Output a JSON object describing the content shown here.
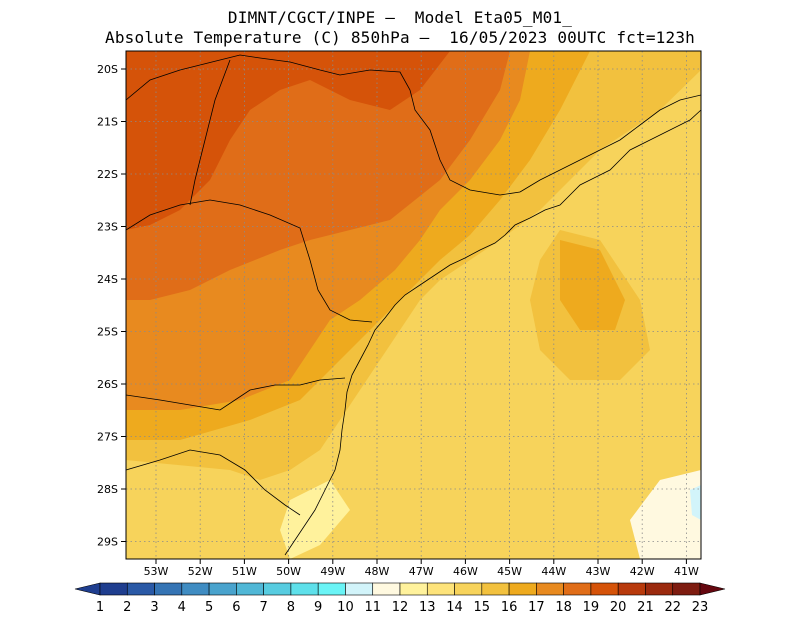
{
  "title": {
    "line1": "DIMNT/CGCT/INPE –  Model Eta05_M01_",
    "line2": "Absolute Temperature (C) 850hPa –  16/05/2023 00UTC fct=123h"
  },
  "map": {
    "lat_labels": [
      "20S",
      "21S",
      "22S",
      "23S",
      "24S",
      "25S",
      "26S",
      "27S",
      "28S",
      "29S"
    ],
    "lon_labels": [
      "53W",
      "52W",
      "51W",
      "50W",
      "49W",
      "48W",
      "47W",
      "46W",
      "45W",
      "44W",
      "43W",
      "42W",
      "41W"
    ],
    "grid": "dotted",
    "region": "Southeastern and Southern Brazil, Atlantic coast"
  },
  "colorbar": {
    "labels": [
      "1",
      "2",
      "3",
      "4",
      "5",
      "6",
      "7",
      "8",
      "9",
      "10",
      "11",
      "12",
      "13",
      "14",
      "15",
      "16",
      "17",
      "18",
      "19",
      "20",
      "21",
      "22",
      "23"
    ],
    "colors": [
      "#1f3e8f",
      "#2a59a6",
      "#3574b4",
      "#3f8cc2",
      "#49a3cd",
      "#50b7d6",
      "#57cce0",
      "#5ee0ea",
      "#6af4f6",
      "#d2f4fa",
      "#fff9e0",
      "#fff29c",
      "#fde37a",
      "#f7d35b",
      "#f2c13e",
      "#eeaa1e",
      "#e88a1f",
      "#e06d18",
      "#d55309",
      "#b83a0c",
      "#9b2a0e",
      "#7e1c10",
      "#65070f"
    ],
    "range": [
      1,
      23
    ]
  },
  "colors": {
    "c12": "#fff29c",
    "c13": "#fde37a",
    "c14": "#f7d35b",
    "c15": "#f2c13e",
    "c16": "#eeaa1e",
    "c17": "#e88a1f",
    "c18": "#e06d18",
    "c19": "#d55309",
    "c10": "#d2f4fa",
    "c11": "#fff9e0"
  }
}
